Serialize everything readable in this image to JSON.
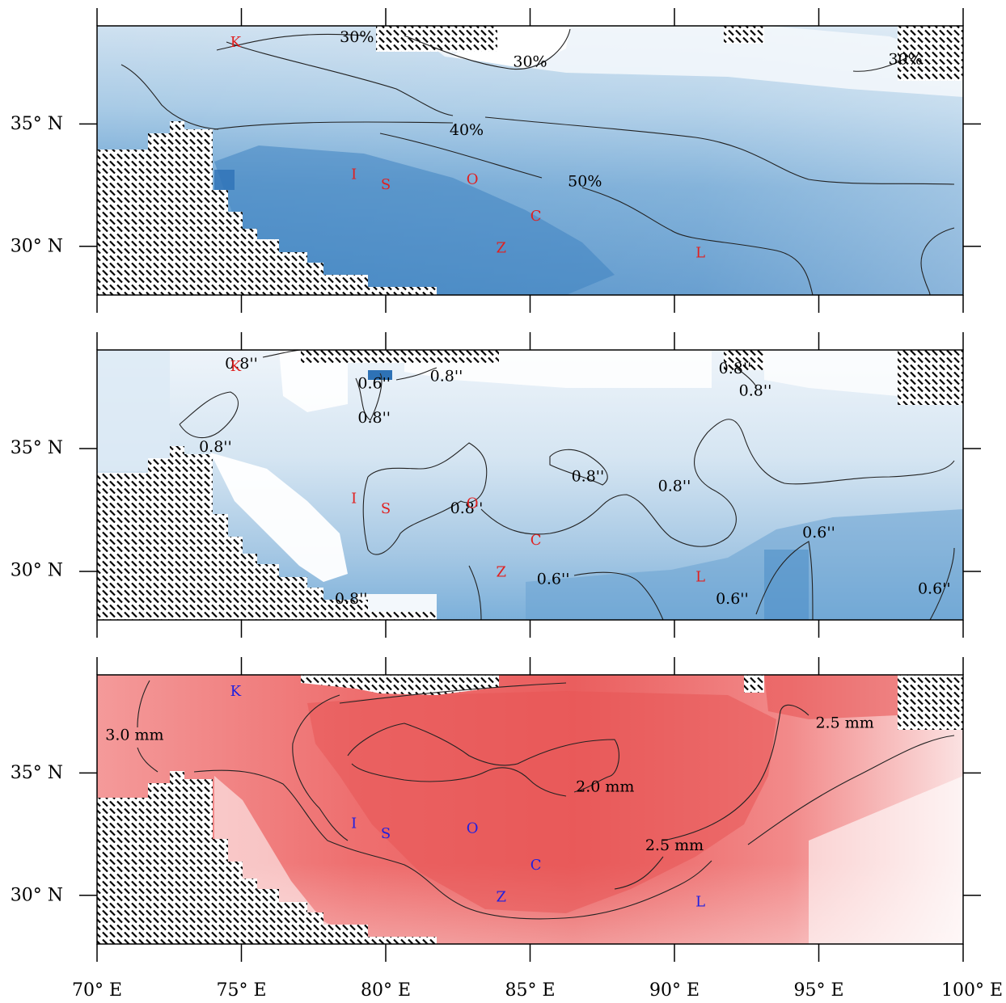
{
  "map": {
    "x_axis": {
      "ticks": [
        70,
        75,
        80,
        85,
        90,
        95,
        100
      ],
      "labels": [
        "70° E",
        "75° E",
        "80° E",
        "85° E",
        "90° E",
        "95° E",
        "100° E"
      ],
      "range": [
        70,
        100
      ]
    },
    "y_axis": {
      "ticks": [
        30,
        35
      ],
      "labels": [
        "30° N",
        "35° N"
      ],
      "range": [
        28,
        39
      ]
    },
    "hatch": "masked-area",
    "panels": [
      {
        "id": "clear-fraction",
        "colormap": "blue",
        "site_color": "#e02020",
        "contour_labels": [
          {
            "text": "30%",
            "lon": 79.0,
            "lat": 38.5
          },
          {
            "text": "30%",
            "lon": 85.0,
            "lat": 37.5
          },
          {
            "text": "30%",
            "lon": 98.0,
            "lat": 37.6
          },
          {
            "text": "40%",
            "lon": 82.8,
            "lat": 34.7
          },
          {
            "text": "50%",
            "lon": 86.9,
            "lat": 32.6
          }
        ]
      },
      {
        "id": "seeing",
        "colormap": "blue",
        "site_color": "#e02020",
        "contour_labels": [
          {
            "text": "0.8''",
            "lon": 75.0,
            "lat": 38.4
          },
          {
            "text": "0.6''",
            "lon": 79.6,
            "lat": 37.6
          },
          {
            "text": "0.8''",
            "lon": 82.1,
            "lat": 37.9
          },
          {
            "text": "0.8''",
            "lon": 79.6,
            "lat": 36.2
          },
          {
            "text": "0.8''",
            "lon": 74.1,
            "lat": 35.0
          },
          {
            "text": "0.8''",
            "lon": 92.1,
            "lat": 38.2
          },
          {
            "text": "0.8''",
            "lon": 92.8,
            "lat": 37.3
          },
          {
            "text": "0.8''",
            "lon": 87.0,
            "lat": 33.8
          },
          {
            "text": "0.8''",
            "lon": 90.0,
            "lat": 33.4
          },
          {
            "text": "0.8''",
            "lon": 82.8,
            "lat": 32.5
          },
          {
            "text": "0.6''",
            "lon": 95.0,
            "lat": 31.5
          },
          {
            "text": "0.6''",
            "lon": 85.8,
            "lat": 29.6
          },
          {
            "text": "0.6''",
            "lon": 92.0,
            "lat": 28.8
          },
          {
            "text": "0.6''",
            "lon": 99.0,
            "lat": 29.2
          },
          {
            "text": "0.8''",
            "lon": 78.8,
            "lat": 28.8
          }
        ]
      },
      {
        "id": "precipitable-water",
        "colormap": "red",
        "site_color": "#2020e0",
        "contour_labels": [
          {
            "text": "3.0 mm",
            "lon": 71.3,
            "lat": 36.5
          },
          {
            "text": "2.5 mm",
            "lon": 95.9,
            "lat": 37.0
          },
          {
            "text": "2.0 mm",
            "lon": 87.6,
            "lat": 34.4
          },
          {
            "text": "2.5 mm",
            "lon": 90.0,
            "lat": 32.0
          }
        ]
      }
    ],
    "sites": [
      {
        "code": "K",
        "lon": 74.8,
        "lat": 38.3
      },
      {
        "code": "I",
        "lon": 78.9,
        "lat": 32.9
      },
      {
        "code": "S",
        "lon": 80.0,
        "lat": 32.5
      },
      {
        "code": "O",
        "lon": 83.0,
        "lat": 32.7
      },
      {
        "code": "C",
        "lon": 85.2,
        "lat": 31.2
      },
      {
        "code": "Z",
        "lon": 84.0,
        "lat": 29.9
      },
      {
        "code": "L",
        "lon": 90.9,
        "lat": 29.7
      }
    ]
  }
}
